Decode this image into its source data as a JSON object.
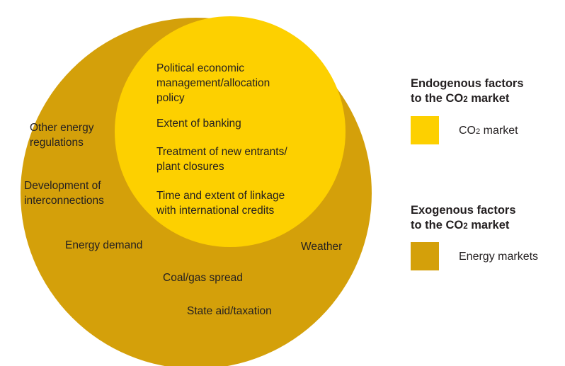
{
  "colors": {
    "outer": "#d4a00a",
    "inner": "#fdd000",
    "text": "#231f20"
  },
  "inner_labels": [
    "Political economic management/allocation policy",
    "Extent of banking",
    "Treatment of new entrants/ plant closures",
    "Time and extent of linkage with international credits"
  ],
  "outer_labels": [
    "Other energy regulations",
    "Development of interconnections",
    "Energy demand",
    "Weather",
    "Coal/gas spread",
    "State aid/taxation"
  ],
  "legend": {
    "endogenous_title_l1": "Endogenous factors",
    "endogenous_title_l2_pre": "to the CO",
    "endogenous_title_l2_sub": "2",
    "endogenous_title_l2_post": " market",
    "endogenous_item_pre": "CO",
    "endogenous_item_sub": "2",
    "endogenous_item_post": " market",
    "exogenous_title_l1": "Exogenous factors",
    "exogenous_title_l2_pre": "to the CO",
    "exogenous_title_l2_sub": "2",
    "exogenous_title_l2_post": " market",
    "exogenous_item": "Energy markets"
  }
}
